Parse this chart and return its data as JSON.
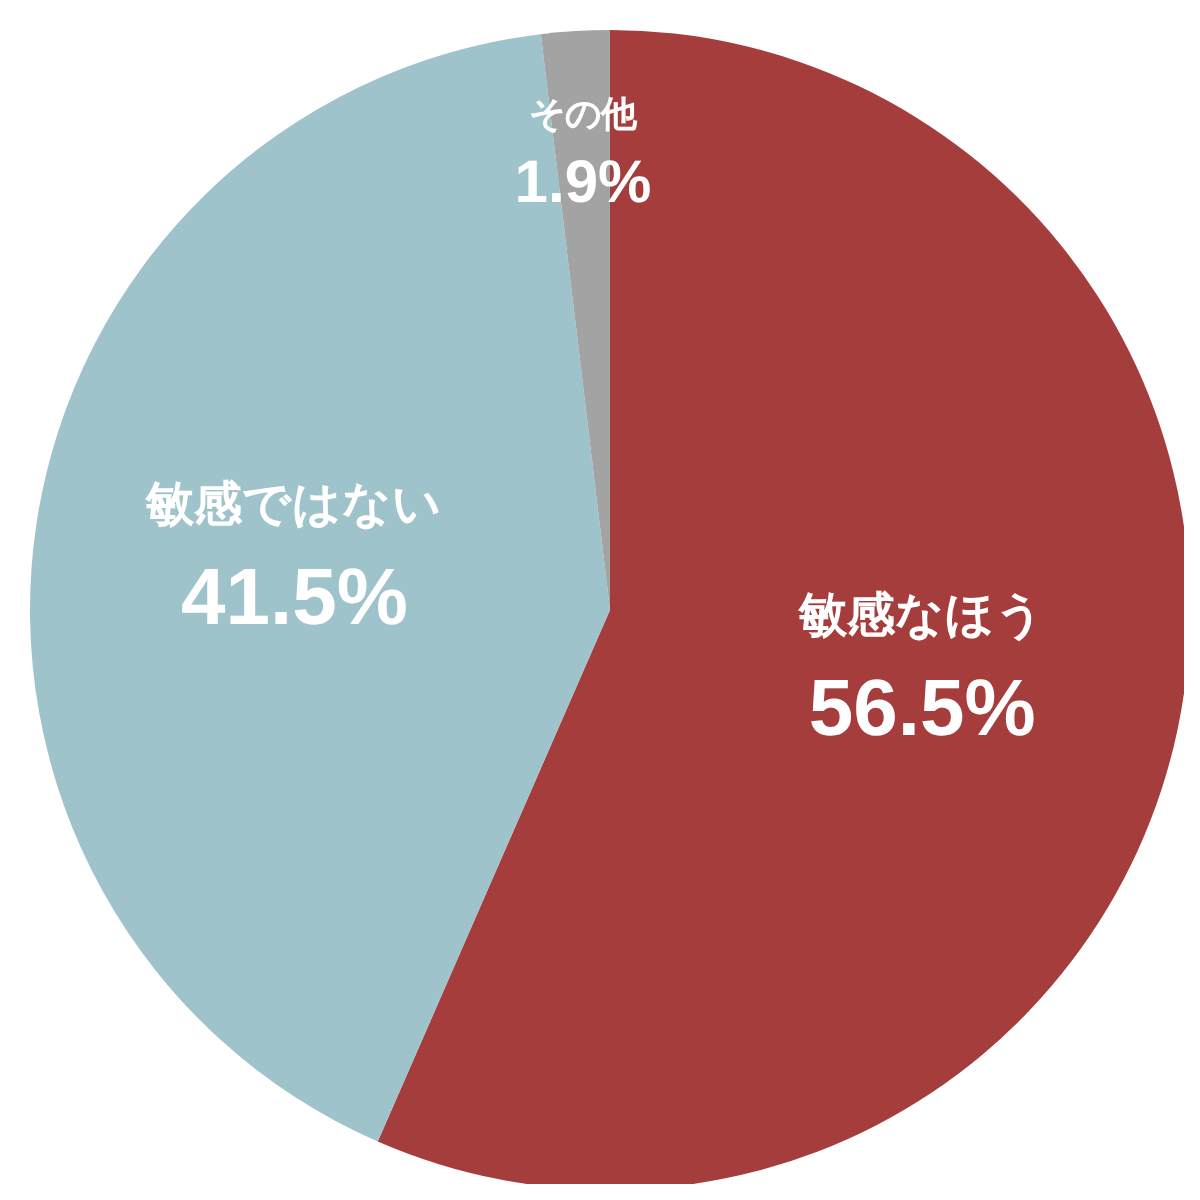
{
  "chart_data": {
    "type": "pie",
    "categories": [
      "敏感なほう",
      "敏感ではない",
      "その他"
    ],
    "values": [
      56.5,
      41.5,
      1.9
    ],
    "colors": [
      "#a63d3d",
      "#9ec3cb",
      "#a3a3a3"
    ],
    "value_labels": [
      "56.5%",
      "41.5%",
      "1.9%"
    ],
    "legend": false
  }
}
